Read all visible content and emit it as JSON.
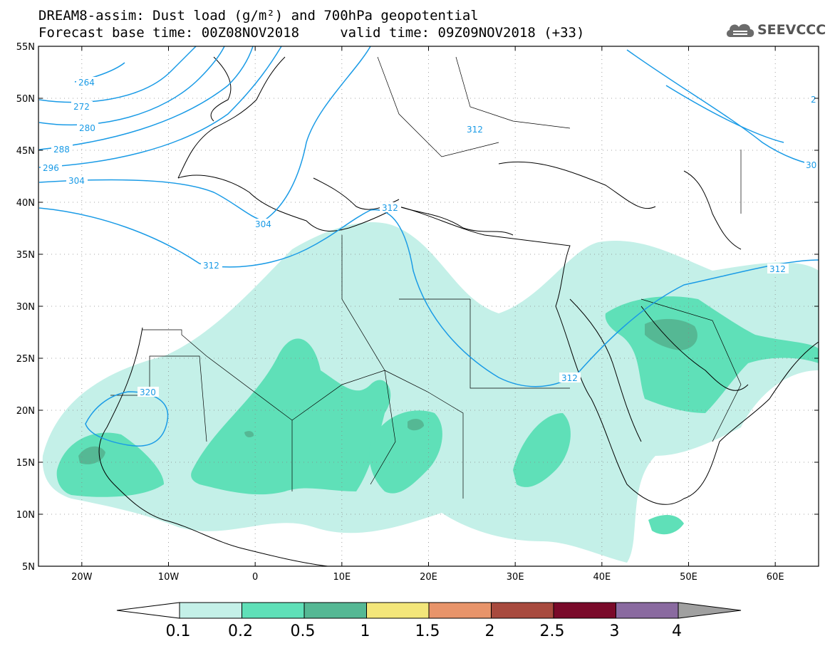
{
  "header": {
    "title_line_1": "DREAM8-assim: Dust load (g/m²) and 700hPa geopotential",
    "title_line_2": "Forecast base time: 00Z08NOV2018     valid time: 09Z09NOV2018 (+33)"
  },
  "logo": {
    "text": "SEEVCCC",
    "icon": "cloud-icon"
  },
  "map": {
    "lon_range": [
      -25,
      65
    ],
    "lat_range": [
      5,
      55
    ],
    "lat_labels": [
      "55N",
      "50N",
      "45N",
      "40N",
      "35N",
      "30N",
      "25N",
      "20N",
      "15N",
      "10N",
      "5N"
    ],
    "lon_labels": [
      "20W",
      "10W",
      "0",
      "10E",
      "20E",
      "30E",
      "40E",
      "50E",
      "60E"
    ],
    "contour_color": "#1a9be6",
    "contour_levels": [
      "264",
      "272",
      "280",
      "288",
      "296",
      "304",
      "312",
      "320"
    ],
    "contour_labels_shown": [
      "264",
      "272",
      "280",
      "288",
      "296",
      "304",
      "304",
      "312",
      "312",
      "312",
      "312",
      "312",
      "320",
      "30",
      "2"
    ]
  },
  "colorbar": {
    "labels": [
      "0.1",
      "0.2",
      "0.5",
      "1",
      "1.5",
      "2",
      "2.5",
      "3",
      "4"
    ],
    "colors": [
      "#c4f0e8",
      "#5fe0b8",
      "#55b894",
      "#f3e67a",
      "#e8946a",
      "#a84a3e",
      "#7a0a2a",
      "#8a6aa0",
      "#a0a0a0"
    ],
    "low_color": "#ffffff",
    "high_color": "#a0a0a0"
  }
}
